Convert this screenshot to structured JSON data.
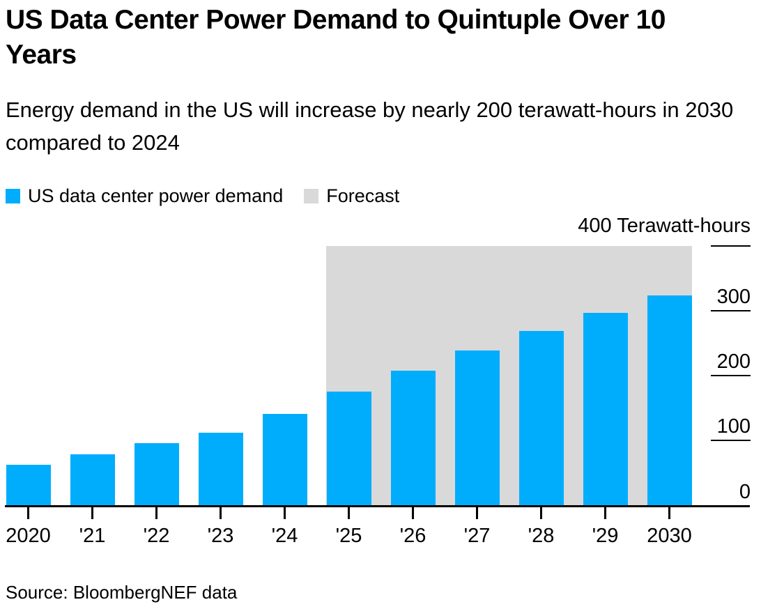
{
  "header": {
    "title": "US Data Center Power Demand to Quintuple Over 10 Years",
    "subtitle": "Energy demand in the US will increase by nearly 200 terawatt-hours in 2030 compared to 2024"
  },
  "legend": [
    {
      "label": "US data center power demand",
      "color": "#00ADFC"
    },
    {
      "label": "Forecast",
      "color": "#D9D9D9"
    }
  ],
  "chart_data": {
    "type": "bar",
    "title": "US Data Center Power Demand to Quintuple Over 10 Years",
    "subtitle": "Energy demand in the US will increase by nearly 200 terawatt-hours in 2030 compared to 2024",
    "categories": [
      "2020",
      "'21",
      "'22",
      "'23",
      "'24",
      "'25",
      "'26",
      "'27",
      "'28",
      "'29",
      "2030"
    ],
    "values": [
      63,
      79,
      96,
      112,
      141,
      175,
      208,
      239,
      269,
      296,
      323
    ],
    "series_name": "US data center power demand",
    "forecast_label": "Forecast",
    "forecast_start_category": "'25",
    "unit_label": "400 Terawatt-hours",
    "ylabel": "Terawatt-hours",
    "ylim": [
      0,
      400
    ],
    "y_ticks": [
      0,
      100,
      200,
      300,
      400
    ],
    "grid": false,
    "legend_position": "top-left",
    "bar_color": "#00ADFC",
    "forecast_color": "#D9D9D9",
    "axis_color": "#000000"
  },
  "source": "Source: BloombergNEF data"
}
